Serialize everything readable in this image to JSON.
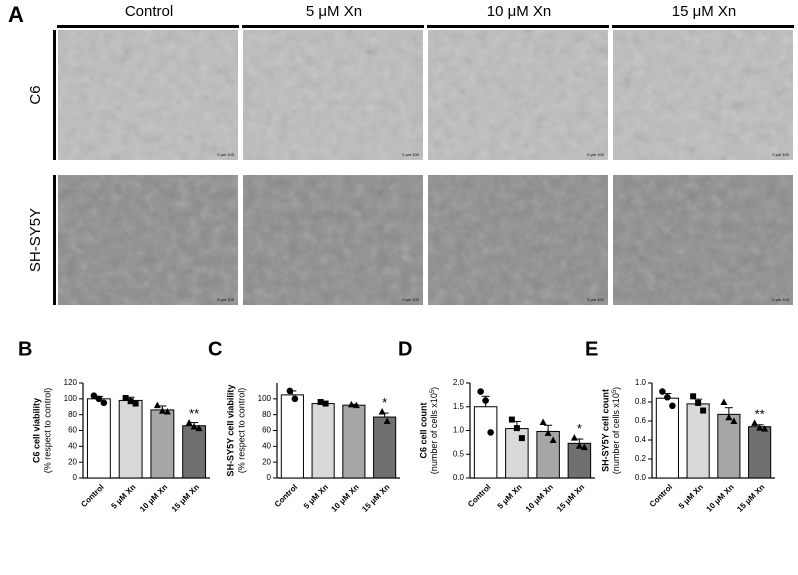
{
  "panel_a": {
    "label": "A",
    "columns": [
      "Control",
      "5 μM Xn",
      "10 μM Xn",
      "15 μM Xn"
    ],
    "rows": [
      "C6",
      "SH-SY5Y"
    ],
    "scale_bar": "0    μm    100"
  },
  "chart_data": [
    {
      "type": "bar",
      "panel": "B",
      "y_label": "C6 cell viability",
      "y_label_note": "(% respect to control)",
      "categories": [
        "Control",
        "5 μM Xn",
        "10 μM Xn",
        "15 μM Xn"
      ],
      "values": [
        100,
        98,
        86,
        66
      ],
      "errors": [
        3,
        4,
        5,
        4
      ],
      "points": [
        [
          104,
          100,
          95
        ],
        [
          101,
          97,
          94
        ],
        [
          92,
          85,
          84
        ],
        [
          70,
          65,
          63
        ]
      ],
      "point_shapes": [
        "circle",
        "square",
        "triangle",
        "triangle"
      ],
      "colors": [
        "#ffffff",
        "#d9d9d9",
        "#a6a6a6",
        "#707070"
      ],
      "annotations": [
        {
          "index": 3,
          "text": "**"
        }
      ],
      "ylim": [
        0,
        120
      ],
      "yticks": [
        0,
        20,
        40,
        60,
        80,
        100,
        120
      ]
    },
    {
      "type": "bar",
      "panel": "C",
      "y_label": "SH-SY5Y cell viability",
      "y_label_note": "(% respect to control)",
      "categories": [
        "Control",
        "5 μM Xn",
        "10 μM Xn",
        "15 μM Xn"
      ],
      "values": [
        105,
        94,
        92,
        77
      ],
      "errors": [
        5,
        2,
        1,
        5
      ],
      "points": [
        [
          110,
          100
        ],
        [
          96,
          94
        ],
        [
          93,
          92
        ],
        [
          84,
          72
        ]
      ],
      "point_shapes": [
        "circle",
        "square",
        "triangle",
        "triangle"
      ],
      "colors": [
        "#ffffff",
        "#d9d9d9",
        "#a6a6a6",
        "#707070"
      ],
      "annotations": [
        {
          "index": 3,
          "text": "*"
        }
      ],
      "ylim": [
        0,
        120
      ],
      "yticks": [
        0,
        20,
        40,
        60,
        80,
        100
      ]
    },
    {
      "type": "bar",
      "panel": "D",
      "y_label": "C6 cell count",
      "y_label_note": {
        "before": "(number of cells x10",
        "sup": "5",
        "after": ")"
      },
      "categories": [
        "Control",
        "5 μM Xn",
        "10 μM Xn",
        "15 μM Xn"
      ],
      "values": [
        1.5,
        1.04,
        0.98,
        0.73
      ],
      "errors": [
        0.22,
        0.15,
        0.13,
        0.09
      ],
      "points": [
        [
          1.82,
          1.63,
          0.96
        ],
        [
          1.23,
          1.05,
          0.84
        ],
        [
          1.18,
          0.95,
          0.8
        ],
        [
          0.85,
          0.68,
          0.65
        ]
      ],
      "point_shapes": [
        "circle",
        "square",
        "triangle",
        "triangle"
      ],
      "colors": [
        "#ffffff",
        "#d9d9d9",
        "#a6a6a6",
        "#707070"
      ],
      "annotations": [
        {
          "index": 3,
          "text": "*"
        }
      ],
      "ylim": [
        0,
        2
      ],
      "yticks": [
        {
          "value": 0,
          "label": "0.0"
        },
        0.5,
        {
          "value": 1,
          "label": "1.0"
        },
        1.5,
        {
          "value": 2,
          "label": "2.0"
        }
      ]
    },
    {
      "type": "bar",
      "panel": "E",
      "y_label": "SH-SY5Y cell count",
      "y_label_note": {
        "before": "(number of cells x10",
        "sup": "5",
        "after": ")"
      },
      "categories": [
        "Control",
        "5 μM Xn",
        "10 μM Xn",
        "15 μM Xn"
      ],
      "values": [
        0.84,
        0.78,
        0.67,
        0.54
      ],
      "errors": [
        0.05,
        0.05,
        0.07,
        0.02
      ],
      "points": [
        [
          0.91,
          0.85,
          0.76
        ],
        [
          0.86,
          0.79,
          0.71
        ],
        [
          0.8,
          0.64,
          0.6
        ],
        [
          0.58,
          0.53,
          0.52
        ]
      ],
      "point_shapes": [
        "circle",
        "square",
        "triangle",
        "triangle"
      ],
      "colors": [
        "#ffffff",
        "#d9d9d9",
        "#a6a6a6",
        "#707070"
      ],
      "annotations": [
        {
          "index": 3,
          "text": "**"
        }
      ],
      "ylim": [
        0,
        1
      ],
      "yticks": [
        {
          "value": 0,
          "label": "0.0"
        },
        0.2,
        0.4,
        0.6,
        0.8,
        {
          "value": 1,
          "label": "1.0"
        }
      ]
    }
  ]
}
